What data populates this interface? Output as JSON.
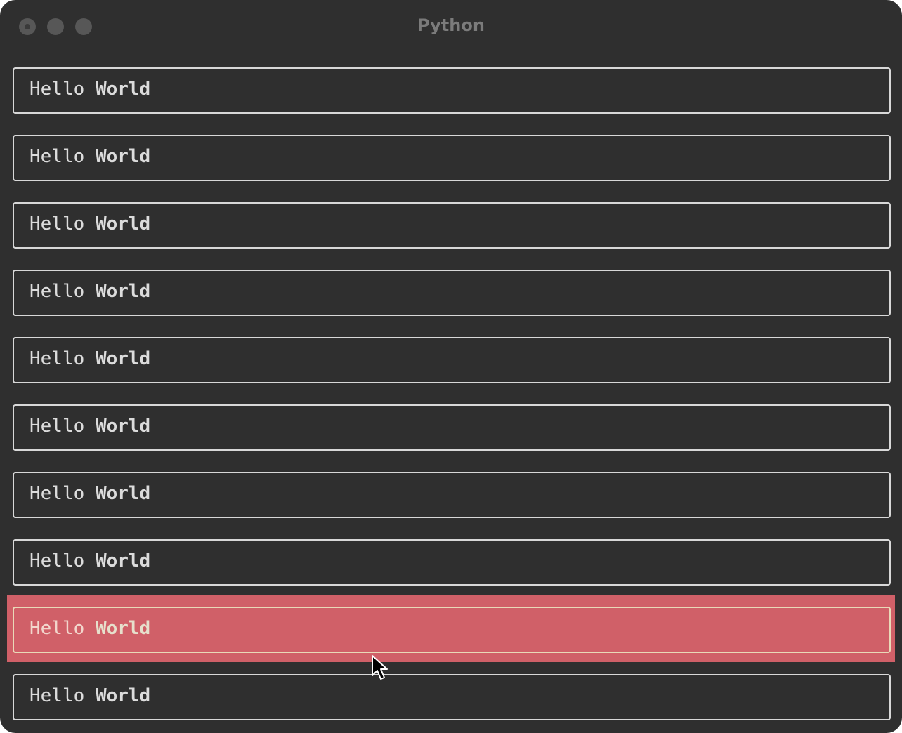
{
  "window": {
    "title": "Python",
    "traffic_lights": [
      "close",
      "minimize",
      "zoom"
    ]
  },
  "list": {
    "selected_index": 8,
    "highlight_color": "#d06068",
    "items": [
      {
        "word1": "Hello",
        "word2": "World"
      },
      {
        "word1": "Hello",
        "word2": "World"
      },
      {
        "word1": "Hello",
        "word2": "World"
      },
      {
        "word1": "Hello",
        "word2": "World"
      },
      {
        "word1": "Hello",
        "word2": "World"
      },
      {
        "word1": "Hello",
        "word2": "World"
      },
      {
        "word1": "Hello",
        "word2": "World"
      },
      {
        "word1": "Hello",
        "word2": "World"
      },
      {
        "word1": "Hello",
        "word2": "World"
      },
      {
        "word1": "Hello",
        "word2": "World"
      }
    ]
  },
  "cursor": {
    "icon": "arrow-pointer-icon"
  }
}
